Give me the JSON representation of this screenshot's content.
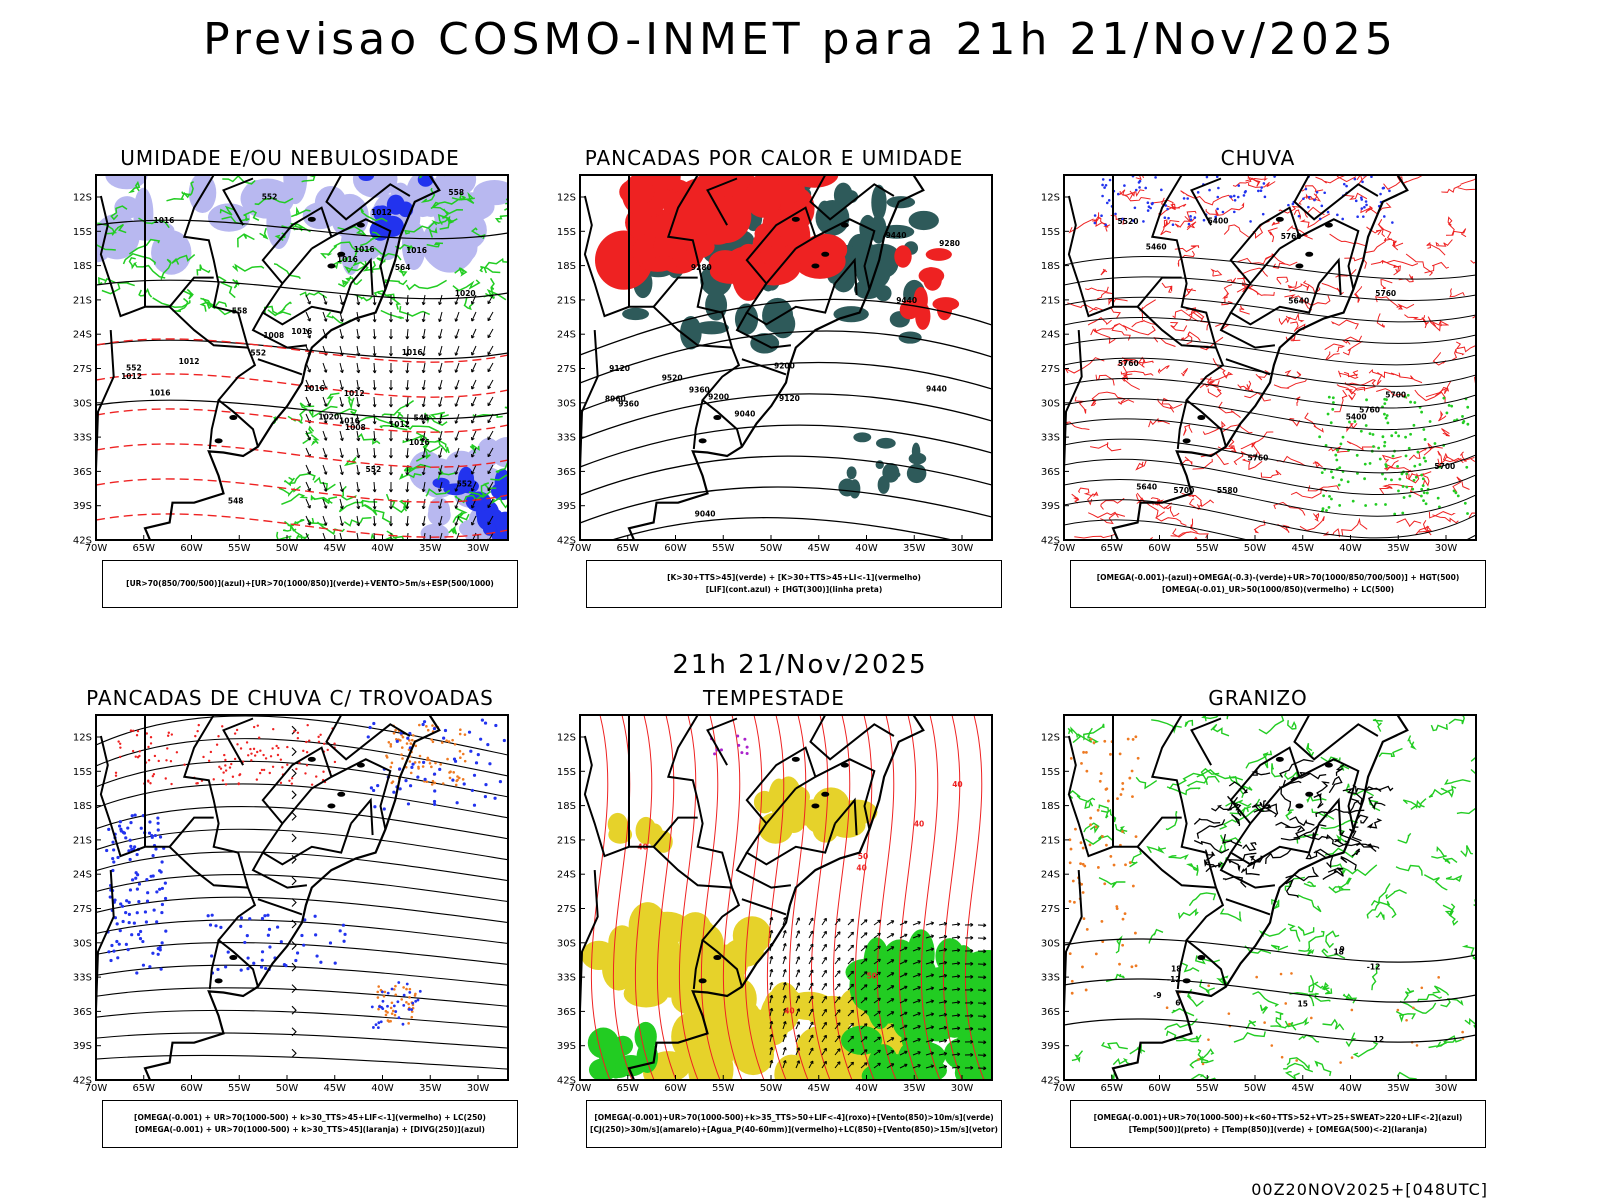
{
  "header": {
    "title": "Previsao COSMO-INMET  para 21h 21/Nov/2025",
    "mid_date": "21h 21/Nov/2025",
    "run_info": "00Z20NOV2025+[048UTC]"
  },
  "axes": {
    "lat_labels": [
      "12S",
      "15S",
      "18S",
      "21S",
      "24S",
      "27S",
      "30S",
      "33S",
      "36S",
      "39S",
      "42S"
    ],
    "lon_labels": [
      "70W",
      "65W",
      "60W",
      "55W",
      "50W",
      "45W",
      "40W",
      "35W",
      "30W"
    ]
  },
  "colors": {
    "green": "#22cc22",
    "red": "#ee2222",
    "blue": "#2233ee",
    "lavender": "#b8b8f0",
    "darkteal": "#2e5a5a",
    "yellow": "#e6d22a",
    "orange": "#ee7a22",
    "purple": "#aa22cc"
  },
  "panels": [
    {
      "title": "UMIDADE E/OU NEBULOSIDADE",
      "legend": [
        "[UR>70(850/700/500)](azul)+[UR>70(1000/850)](verde)+VENTO>5m/s+ESP(500/1000)"
      ],
      "contour_labels": [
        "1012",
        "1008",
        "1016",
        "1016",
        "1012",
        "1016",
        "1016",
        "1020",
        "1016",
        "1012",
        "1016",
        "1012",
        "1008",
        "1016",
        "1016",
        "1020",
        "1016",
        "1012",
        "1016",
        "552",
        "564",
        "552",
        "548",
        "558",
        "552",
        "546",
        "552",
        "552",
        "558"
      ]
    },
    {
      "title": "PANCADAS POR CALOR E UMIDADE",
      "legend": [
        "[K>30+TTS>45](verde) + [K>30+TTS>45+LI<-1](vermelho)",
        "[LIF](cont.azul) + [HGT(300)](linha preta)"
      ],
      "contour_labels": [
        "9520",
        "9440",
        "9440",
        "9440",
        "9360",
        "9360",
        "9280",
        "9280",
        "9200",
        "9200",
        "9120",
        "9120",
        "9040",
        "9040",
        "8960"
      ]
    },
    {
      "title": "CHUVA",
      "legend": [
        "[OMEGA(-0.001)-(azul)+OMEGA(-0.3)-(verde)+UR>70(1000/850/700/500)] + HGT(500)",
        "[OMEGA(-0.01)_UR>50(1000/850)(vermelho) + LC(500)"
      ],
      "contour_labels": [
        "5760",
        "5760",
        "5760",
        "5760",
        "5760",
        "5700",
        "5700",
        "5700",
        "5640",
        "5640",
        "5580",
        "5520",
        "5460",
        "5400",
        "5400"
      ]
    },
    {
      "title": "PANCADAS DE CHUVA C/ TROVOADAS",
      "legend": [
        "[OMEGA(-0.001) + UR>70(1000-500) + k>30_TTS>45+LIF<-1](vermelho) + LC(250)",
        "[OMEGA(-0.001) + UR>70(1000-500) + k>30_TTS>45](laranja) + [DIVG(250)](azul)"
      ],
      "contour_labels": []
    },
    {
      "title": "TEMPESTADE",
      "legend": [
        "[OMEGA(-0.001)+UR>70(1000-500)+k>35_TTS>50+LIF<-4](roxo)+[Vento(850)>10m/s](verde)",
        "[CJ(250)>30m/s](amarelo)+[Agua_P(40-60mm)](vermelho)+LC(850)+[Vento(850)>15m/s](vetor)"
      ],
      "contour_labels": [
        "50",
        "40",
        "40",
        "40",
        "40",
        "40",
        "50"
      ]
    },
    {
      "title": "GRANIZO",
      "legend": [
        "[OMEGA(-0.001)+UR>70(1000-500)+k<60+TTS>52+VT>25+SWEAT>220+LIF<-2](azul)",
        "[Temp(500)](preto) + [Temp(850)](verde) + [OMEGA(500)<-2](laranja)"
      ],
      "contour_labels": [
        "-12",
        "-12",
        "-9",
        "18",
        "18",
        "15",
        "12",
        "9",
        "6"
      ]
    }
  ]
}
